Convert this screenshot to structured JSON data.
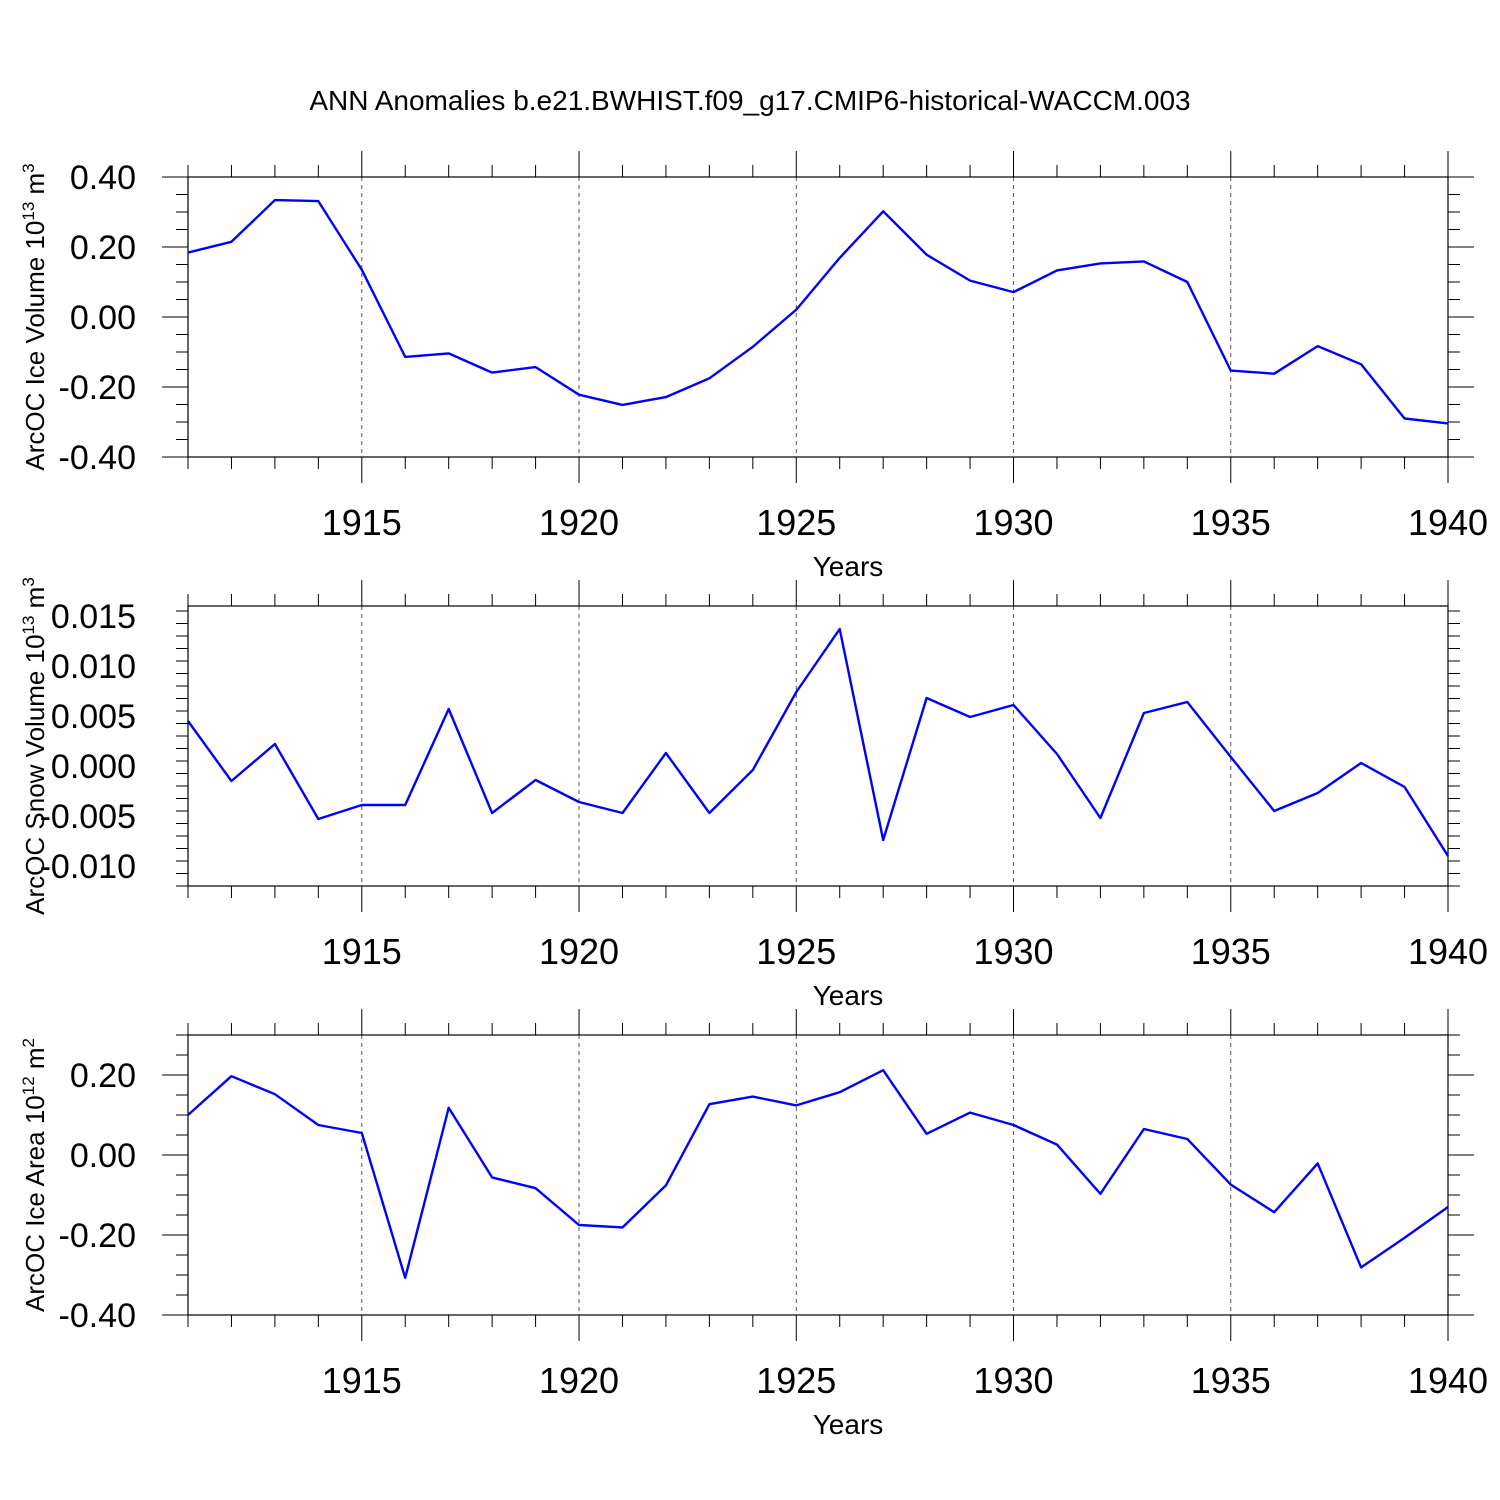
{
  "title": "ANN Anomalies b.e21.BWHIST.f09_g17.CMIP6-historical-WACCM.003",
  "colors": {
    "line": "#0000ff",
    "axis": "#000000",
    "grid": "#555555"
  },
  "chart_data": [
    {
      "type": "line",
      "name": "ice-volume",
      "ylabel": "ArcOC Ice Volume 10",
      "ylabel_exp": "13",
      "ylabel_unit": " m",
      "ylabel_unit_exp": "3",
      "xlabel": "Years",
      "xlim": [
        1911,
        1940
      ],
      "ylim": [
        -0.4,
        0.4
      ],
      "yticks": [
        -0.4,
        -0.2,
        0.0,
        0.2,
        0.4
      ],
      "ytick_labels": [
        "-0.40",
        "-0.20",
        "0.00",
        "0.20",
        "0.40"
      ],
      "xticks": [
        1915,
        1920,
        1925,
        1930,
        1935,
        1940
      ],
      "xtick_labels": [
        "1915",
        "1920",
        "1925",
        "1930",
        "1935",
        "1940"
      ],
      "grid_x": true,
      "x": [
        1911,
        1912,
        1913,
        1914,
        1915,
        1916,
        1917,
        1918,
        1919,
        1920,
        1921,
        1922,
        1923,
        1924,
        1925,
        1926,
        1927,
        1928,
        1929,
        1930,
        1931,
        1932,
        1933,
        1934,
        1935,
        1936,
        1937,
        1938,
        1939,
        1940
      ],
      "values": [
        0.184,
        0.215,
        0.334,
        0.331,
        0.135,
        -0.114,
        -0.104,
        -0.159,
        -0.143,
        -0.222,
        -0.251,
        -0.229,
        -0.175,
        -0.085,
        0.021,
        0.169,
        0.302,
        0.178,
        0.104,
        0.071,
        0.133,
        0.153,
        0.159,
        0.1,
        -0.153,
        -0.162,
        -0.083,
        -0.135,
        -0.29,
        -0.304
      ]
    },
    {
      "type": "line",
      "name": "snow-volume",
      "ylabel": "ArcOC Snow Volume 10",
      "ylabel_exp": "13",
      "ylabel_unit": " m",
      "ylabel_unit_exp": "3",
      "xlabel": "Years",
      "xlim": [
        1911,
        1940
      ],
      "ylim": [
        -0.012,
        0.016
      ],
      "yticks": [
        -0.01,
        -0.005,
        0.0,
        0.005,
        0.01,
        0.015
      ],
      "ytick_labels": [
        "-0.010",
        "-0.005",
        "0.000",
        "0.005",
        "0.010",
        "0.015"
      ],
      "xticks": [
        1915,
        1920,
        1925,
        1930,
        1935,
        1940
      ],
      "xtick_labels": [
        "1915",
        "1920",
        "1925",
        "1930",
        "1935",
        "1940"
      ],
      "grid_x": true,
      "x": [
        1911,
        1912,
        1913,
        1914,
        1915,
        1916,
        1917,
        1918,
        1919,
        1920,
        1921,
        1922,
        1923,
        1924,
        1925,
        1926,
        1927,
        1928,
        1929,
        1930,
        1931,
        1932,
        1933,
        1934,
        1935,
        1936,
        1937,
        1938,
        1939,
        1940
      ],
      "values": [
        0.0045,
        -0.0015,
        0.0022,
        -0.0053,
        -0.0039,
        -0.0039,
        0.0057,
        -0.0047,
        -0.0014,
        -0.0036,
        -0.0047,
        0.0013,
        -0.0047,
        -0.0004,
        0.0074,
        0.0137,
        -0.0074,
        0.0068,
        0.0049,
        0.0061,
        0.0012,
        -0.0052,
        0.0053,
        0.0064,
        0.0009,
        -0.0045,
        -0.0027,
        0.0003,
        -0.0021,
        -0.009
      ]
    },
    {
      "type": "line",
      "name": "ice-area",
      "ylabel": "ArcOC Ice Area 10",
      "ylabel_exp": "12",
      "ylabel_unit": " m",
      "ylabel_unit_exp": "2",
      "xlabel": "Years",
      "xlim": [
        1911,
        1940
      ],
      "ylim": [
        -0.4,
        0.3
      ],
      "yticks": [
        -0.4,
        -0.2,
        0.0,
        0.2
      ],
      "ytick_labels": [
        "-0.40",
        "-0.20",
        "0.00",
        "0.20"
      ],
      "xticks": [
        1915,
        1920,
        1925,
        1930,
        1935,
        1940
      ],
      "xtick_labels": [
        "1915",
        "1920",
        "1925",
        "1930",
        "1935",
        "1940"
      ],
      "grid_x": true,
      "x": [
        1911,
        1912,
        1913,
        1914,
        1915,
        1916,
        1917,
        1918,
        1919,
        1920,
        1921,
        1922,
        1923,
        1924,
        1925,
        1926,
        1927,
        1928,
        1929,
        1930,
        1931,
        1932,
        1933,
        1934,
        1935,
        1936,
        1937,
        1938,
        1939,
        1940
      ],
      "values": [
        0.1,
        0.197,
        0.152,
        0.075,
        0.055,
        -0.307,
        0.118,
        -0.056,
        -0.083,
        -0.175,
        -0.181,
        -0.076,
        0.127,
        0.146,
        0.124,
        0.157,
        0.212,
        0.053,
        0.106,
        0.075,
        0.026,
        -0.097,
        0.065,
        0.04,
        -0.074,
        -0.143,
        -0.021,
        -0.281,
        -0.207,
        -0.13
      ]
    }
  ]
}
